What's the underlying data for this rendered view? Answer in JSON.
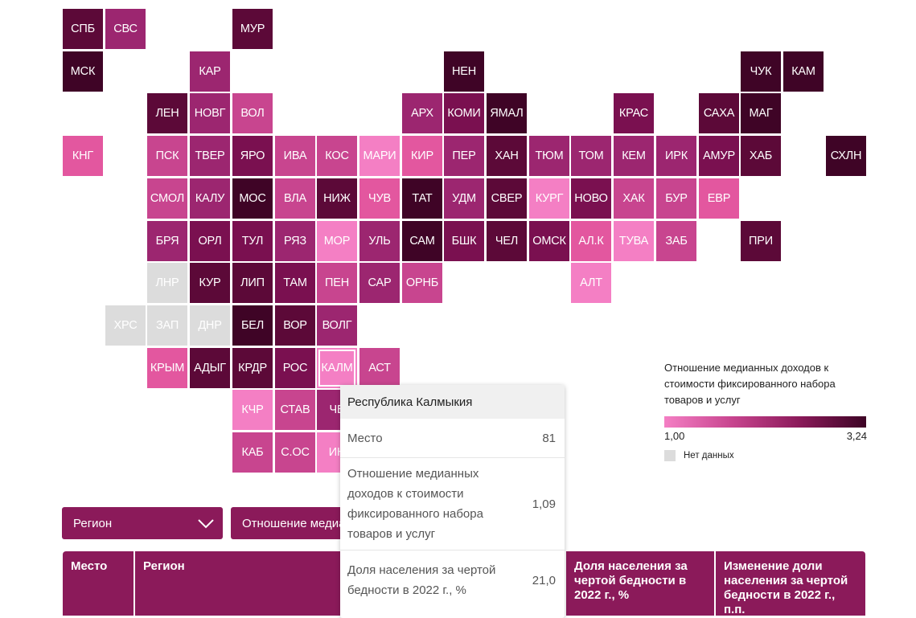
{
  "colors": {
    "c1": "#f47fc4",
    "c2": "#e3579f",
    "c3": "#c8458f",
    "c4": "#9c2670",
    "c5": "#7a1050",
    "c6": "#5c0938",
    "c7": "#3f0426",
    "nodata": "#dcdcdc",
    "accent": "#8b1a5a"
  },
  "map": {
    "tiles": [
      {
        "code": "СПБ",
        "shade": "c6",
        "selected": false
      },
      {
        "code": "СВС",
        "shade": "c4",
        "selected": false
      },
      {
        "code": "МУР",
        "shade": "c6",
        "selected": false
      },
      {
        "code": "МСК",
        "shade": "c7",
        "selected": false
      },
      {
        "code": "КАР",
        "shade": "c4",
        "selected": false
      },
      {
        "code": "НЕН",
        "shade": "c7",
        "selected": false
      },
      {
        "code": "ЧУК",
        "shade": "c7",
        "selected": false
      },
      {
        "code": "КАМ",
        "shade": "c7",
        "selected": false
      },
      {
        "code": "ЛЕН",
        "shade": "c6",
        "selected": false
      },
      {
        "code": "НОВГ",
        "shade": "c4",
        "selected": false
      },
      {
        "code": "ВОЛ",
        "shade": "c3",
        "selected": false
      },
      {
        "code": "АРХ",
        "shade": "c4",
        "selected": false
      },
      {
        "code": "КОМИ",
        "shade": "c5",
        "selected": false
      },
      {
        "code": "ЯМАЛ",
        "shade": "c7",
        "selected": false
      },
      {
        "code": "КРАС",
        "shade": "c5",
        "selected": false
      },
      {
        "code": "САХА",
        "shade": "c6",
        "selected": false
      },
      {
        "code": "МАГ",
        "shade": "c7",
        "selected": false
      },
      {
        "code": "КНГ",
        "shade": "c2",
        "selected": false
      },
      {
        "code": "ПСК",
        "shade": "c3",
        "selected": false
      },
      {
        "code": "ТВЕР",
        "shade": "c4",
        "selected": false
      },
      {
        "code": "ЯРО",
        "shade": "c5",
        "selected": false
      },
      {
        "code": "ИВА",
        "shade": "c3",
        "selected": false
      },
      {
        "code": "КОС",
        "shade": "c3",
        "selected": false
      },
      {
        "code": "МАРИ",
        "shade": "c1",
        "selected": false
      },
      {
        "code": "КИР",
        "shade": "c2",
        "selected": false
      },
      {
        "code": "ПЕР",
        "shade": "c4",
        "selected": false
      },
      {
        "code": "ХАН",
        "shade": "c6",
        "selected": false
      },
      {
        "code": "ТЮМ",
        "shade": "c4",
        "selected": false
      },
      {
        "code": "ТОМ",
        "shade": "c4",
        "selected": false
      },
      {
        "code": "КЕМ",
        "shade": "c4",
        "selected": false
      },
      {
        "code": "ИРК",
        "shade": "c4",
        "selected": false
      },
      {
        "code": "АМУР",
        "shade": "c5",
        "selected": false
      },
      {
        "code": "ХАБ",
        "shade": "c6",
        "selected": false
      },
      {
        "code": "СХЛН",
        "shade": "c7",
        "selected": false
      },
      {
        "code": "СМОЛ",
        "shade": "c3",
        "selected": false
      },
      {
        "code": "КАЛУ",
        "shade": "c4",
        "selected": false
      },
      {
        "code": "МОС",
        "shade": "c7",
        "selected": false
      },
      {
        "code": "ВЛА",
        "shade": "c3",
        "selected": false
      },
      {
        "code": "НИЖ",
        "shade": "c6",
        "selected": false
      },
      {
        "code": "ЧУВ",
        "shade": "c2",
        "selected": false
      },
      {
        "code": "ТАТ",
        "shade": "c7",
        "selected": false
      },
      {
        "code": "УДМ",
        "shade": "c4",
        "selected": false
      },
      {
        "code": "СВЕР",
        "shade": "c6",
        "selected": false
      },
      {
        "code": "КУРГ",
        "shade": "c1",
        "selected": false
      },
      {
        "code": "НОВО",
        "shade": "c5",
        "selected": false
      },
      {
        "code": "ХАК",
        "shade": "c3",
        "selected": false
      },
      {
        "code": "БУР",
        "shade": "c3",
        "selected": false
      },
      {
        "code": "ЕВР",
        "shade": "c2",
        "selected": false
      },
      {
        "code": "БРЯ",
        "shade": "c4",
        "selected": false
      },
      {
        "code": "ОРЛ",
        "shade": "c5",
        "selected": false
      },
      {
        "code": "ТУЛ",
        "shade": "c5",
        "selected": false
      },
      {
        "code": "РЯЗ",
        "shade": "c4",
        "selected": false
      },
      {
        "code": "МОР",
        "shade": "c1",
        "selected": false
      },
      {
        "code": "УЛЬ",
        "shade": "c4",
        "selected": false
      },
      {
        "code": "САМ",
        "shade": "c7",
        "selected": false
      },
      {
        "code": "БШК",
        "shade": "c5",
        "selected": false
      },
      {
        "code": "ЧЕЛ",
        "shade": "c6",
        "selected": false
      },
      {
        "code": "ОМСК",
        "shade": "c5",
        "selected": false
      },
      {
        "code": "АЛ.К",
        "shade": "c2",
        "selected": false
      },
      {
        "code": "ТУВА",
        "shade": "c1",
        "selected": false
      },
      {
        "code": "ЗАБ",
        "shade": "c3",
        "selected": false
      },
      {
        "code": "ПРИ",
        "shade": "c6",
        "selected": false
      },
      {
        "code": "ЛНР",
        "shade": "nodata",
        "selected": false
      },
      {
        "code": "КУР",
        "shade": "c6",
        "selected": false
      },
      {
        "code": "ЛИП",
        "shade": "c6",
        "selected": false
      },
      {
        "code": "ТАМ",
        "shade": "c5",
        "selected": false
      },
      {
        "code": "ПЕН",
        "shade": "c3",
        "selected": false
      },
      {
        "code": "САР",
        "shade": "c4",
        "selected": false
      },
      {
        "code": "ОРНБ",
        "shade": "c3",
        "selected": false
      },
      {
        "code": "АЛТ",
        "shade": "c1",
        "selected": false
      },
      {
        "code": "ХРС",
        "shade": "nodata",
        "selected": false
      },
      {
        "code": "ЗАП",
        "shade": "nodata",
        "selected": false
      },
      {
        "code": "ДНР",
        "shade": "nodata",
        "selected": false
      },
      {
        "code": "БЕЛ",
        "shade": "c7",
        "selected": false
      },
      {
        "code": "ВОР",
        "shade": "c6",
        "selected": false
      },
      {
        "code": "ВОЛГ",
        "shade": "c4",
        "selected": false
      },
      {
        "code": "КРЫМ",
        "shade": "c2",
        "selected": false
      },
      {
        "code": "АДЫГ",
        "shade": "c6",
        "selected": false
      },
      {
        "code": "КРДР",
        "shade": "c6",
        "selected": false
      },
      {
        "code": "РОС",
        "shade": "c5",
        "selected": false
      },
      {
        "code": "КАЛМ",
        "shade": "c1",
        "selected": true
      },
      {
        "code": "АСТ",
        "shade": "c3",
        "selected": false
      },
      {
        "code": "КЧР",
        "shade": "c1",
        "selected": false
      },
      {
        "code": "СТАВ",
        "shade": "c3",
        "selected": false
      },
      {
        "code": "ЧЕ",
        "shade": "c4",
        "selected": false
      },
      {
        "code": "КАБ",
        "shade": "c3",
        "selected": false
      },
      {
        "code": "С.ОС",
        "shade": "c3",
        "selected": false
      },
      {
        "code": "ИН",
        "shade": "c1",
        "selected": false
      }
    ]
  },
  "legend": {
    "title": "Отношение медианных доходов к стоимости фиксированного набора товаров и услуг",
    "min": "1,00",
    "max": "3,24",
    "nodata_label": "Нет данных"
  },
  "controls": {
    "region_select": "Регион",
    "metric_select": "Отношение медианных доходов к стоимости фиксированного набора товаров и услуг"
  },
  "table": {
    "headers": [
      "Место",
      "Регион",
      "Доля населения за чертой бедности в 2022 г., %",
      "Изменение доли населения за чертой бедности в 2022 г., п.п."
    ]
  },
  "tooltip": {
    "title": "Республика Калмыкия",
    "rows": [
      {
        "label": "Место",
        "value": "81"
      },
      {
        "label": "Отношение медианных доходов к стоимости фиксированного набора товаров и услуг",
        "value": "1,09"
      },
      {
        "label": "Доля населения за чертой бедности в 2022 г., %",
        "value": "21,0"
      }
    ]
  }
}
